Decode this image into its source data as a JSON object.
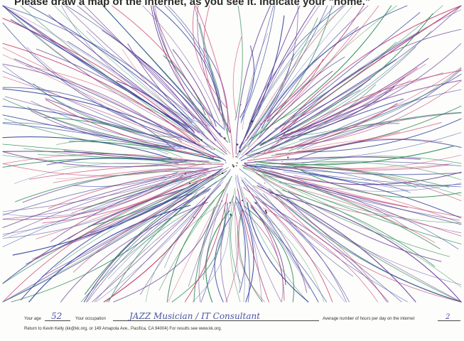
{
  "form": {
    "prompt": "Please draw a map of the internet, as you see it. Indicate your \"home.\"",
    "age_label": "Your age",
    "age_value": "52",
    "occupation_label": "Your occupation",
    "occupation_value": "JAZZ Musician / IT Consultant",
    "hours_label": "Average number of hours per day on the internet",
    "hours_value": "2",
    "footer": "Return to Kevin Kelly (kk@kk.org, or 149 Amapola Ave., Pacifica, CA 94004) For results see www.kk.org."
  },
  "drawing": {
    "description_colors": [
      "#2f3f9e",
      "#c43a6e",
      "#2e8a5a",
      "#6a3f9a"
    ],
    "ink_dots": "#222222"
  }
}
